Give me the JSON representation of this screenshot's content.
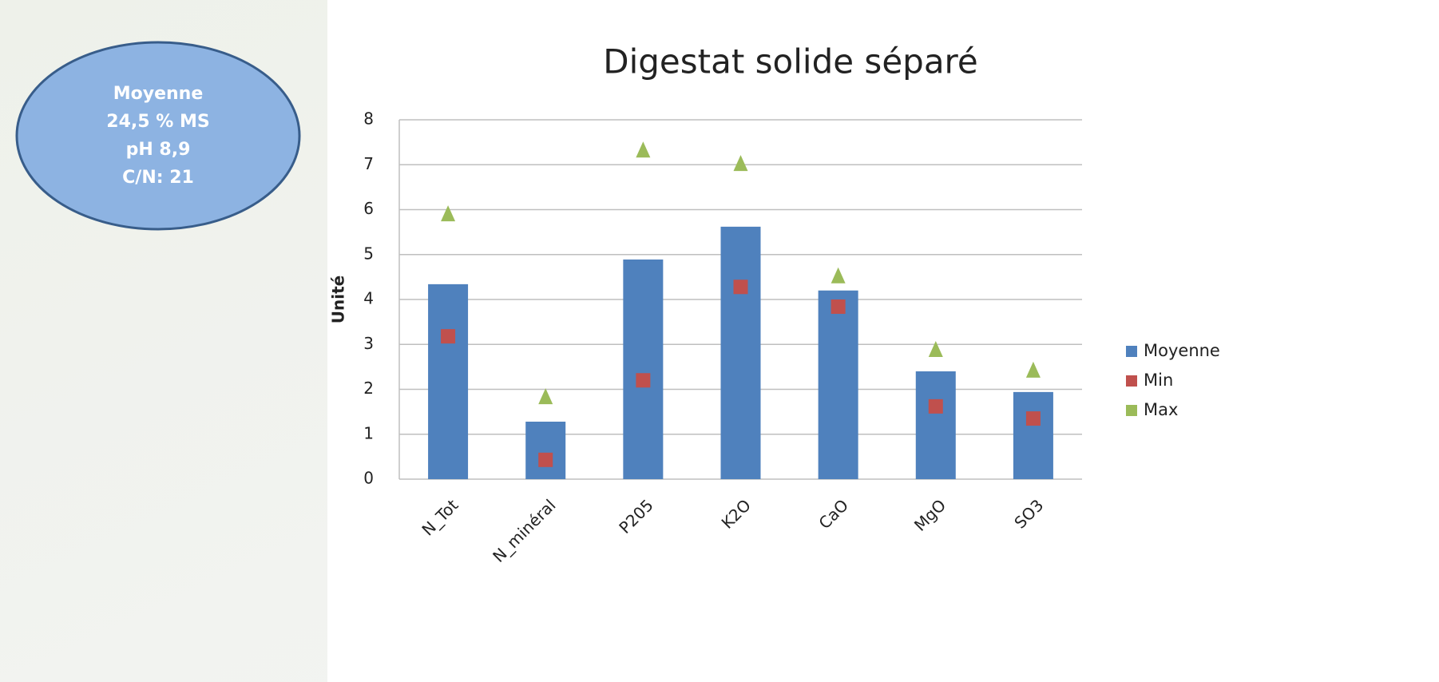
{
  "chart_data": {
    "type": "bar",
    "title": "Digestat solide séparé",
    "y_label": "Unité",
    "annotations": [
      "Moyenne",
      "24,5 % MS",
      "pH 8,9",
      "C/N: 21"
    ],
    "categories": [
      "N_Tot",
      "N_minéral",
      "P205",
      "K2O",
      "CaO",
      "MgO",
      "SO3"
    ],
    "series": [
      {
        "name": "Moyenne",
        "color": "#4f81bd",
        "marker": "bar",
        "values": [
          4.34,
          1.28,
          4.89,
          5.62,
          4.2,
          2.4,
          1.94
        ]
      },
      {
        "name": "Min",
        "color": "#c0504d",
        "marker": "square",
        "values": [
          3.18,
          0.43,
          2.2,
          4.28,
          3.84,
          1.62,
          1.35
        ]
      },
      {
        "name": "Max",
        "color": "#9bbb59",
        "marker": "triangle",
        "values": [
          5.9,
          1.83,
          7.32,
          7.02,
          4.52,
          2.88,
          2.42
        ]
      }
    ],
    "ylim": [
      0,
      8
    ],
    "yticks": [
      0,
      1,
      2,
      3,
      4,
      5,
      6,
      7,
      8
    ],
    "grid": true,
    "legend": "right"
  }
}
